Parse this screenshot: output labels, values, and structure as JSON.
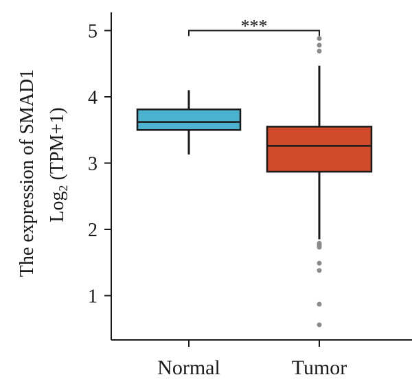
{
  "chart_data": {
    "type": "box",
    "ylabel_line1": "The expression of SMAD1",
    "ylabel_line2_main": "Log",
    "ylabel_line2_sub": "2",
    "ylabel_line2_rest": " (TPM+1)",
    "xlabel": "",
    "ylim": [
      0.3,
      5.25
    ],
    "yticks": [
      {
        "value": 1,
        "label": "1"
      },
      {
        "value": 2,
        "label": "2"
      },
      {
        "value": 3,
        "label": "3"
      },
      {
        "value": 4,
        "label": "4"
      },
      {
        "value": 5,
        "label": "5"
      }
    ],
    "categories": [
      "Normal",
      "Tumor"
    ],
    "groups": [
      {
        "name": "Normal",
        "color": "#4bb3d0",
        "whisker_low": 3.13,
        "q1": 3.5,
        "median": 3.62,
        "q3": 3.81,
        "whisker_high": 4.1,
        "outliers": []
      },
      {
        "name": "Tumor",
        "color": "#d04a2a",
        "whisker_low": 1.85,
        "q1": 2.87,
        "median": 3.26,
        "q3": 3.55,
        "whisker_high": 4.47,
        "outliers": [
          4.88,
          4.78,
          4.69,
          1.79,
          1.76,
          1.73,
          1.49,
          1.38,
          0.87,
          0.56
        ]
      }
    ],
    "significance": {
      "label": "***",
      "between": [
        "Normal",
        "Tumor"
      ],
      "y": 5.0
    },
    "grid": false,
    "legend": "none"
  }
}
